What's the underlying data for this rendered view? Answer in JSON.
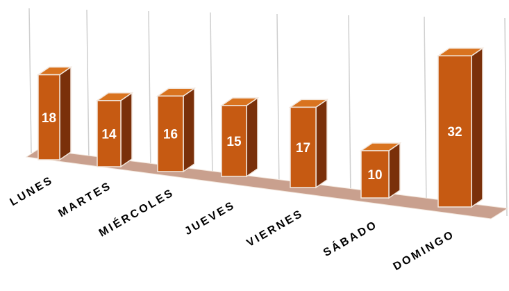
{
  "chart_data": {
    "type": "bar",
    "categories": [
      "LUNES",
      "MARTES",
      "MIÉRCOLES",
      "JUEVES",
      "VIERNES",
      "SÁBADO",
      "DOMINGO"
    ],
    "values": [
      18,
      14,
      16,
      15,
      17,
      10,
      32
    ],
    "title": "",
    "xlabel": "",
    "ylabel": "",
    "ylim": [
      0,
      32
    ],
    "grid": true,
    "legend": "none",
    "style": "3d-perspective",
    "colors": {
      "front": "#c65a12",
      "side": "#7a300a",
      "top": "#d9731f",
      "floor": "#c9a08e",
      "edge": "#f2e6dc",
      "label": "#ffffff",
      "category_text": "#000000",
      "grid": "#cfcfcf"
    }
  }
}
